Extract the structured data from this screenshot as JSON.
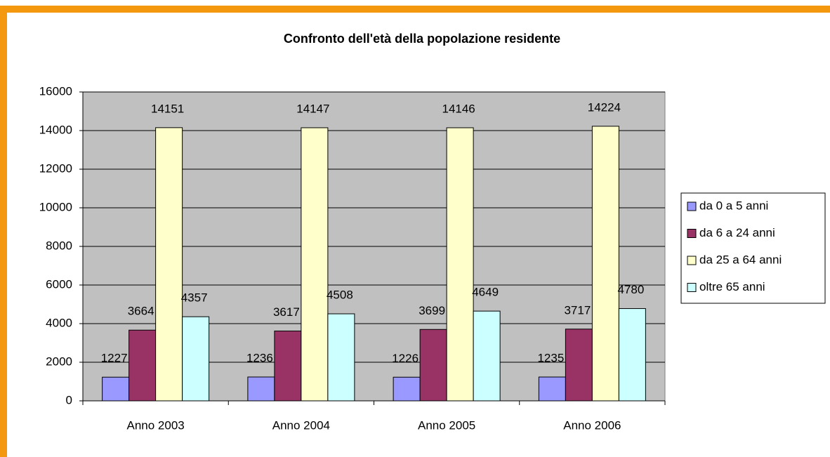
{
  "chart_data": {
    "type": "bar",
    "title": "Confronto dell'età della popolazione residente",
    "categories": [
      "Anno 2003",
      "Anno 2004",
      "Anno 2005",
      "Anno 2006"
    ],
    "series": [
      {
        "name": "da 0 a 5 anni",
        "color": "#9999ff",
        "values": [
          1227,
          1236,
          1226,
          1235
        ]
      },
      {
        "name": "da 6 a 24 anni",
        "color": "#993366",
        "values": [
          3664,
          3617,
          3699,
          3717
        ]
      },
      {
        "name": "da 25 a 64 anni",
        "color": "#ffffcc",
        "values": [
          14151,
          14147,
          14146,
          14224
        ]
      },
      {
        "name": "oltre 65 anni",
        "color": "#ccffff",
        "values": [
          4357,
          4508,
          4649,
          4780
        ]
      }
    ],
    "ylim": [
      0,
      16000
    ],
    "yticks": [
      0,
      2000,
      4000,
      6000,
      8000,
      10000,
      12000,
      14000,
      16000
    ],
    "grid": true,
    "legend": "right",
    "plot_background": "#c0c0c0"
  }
}
